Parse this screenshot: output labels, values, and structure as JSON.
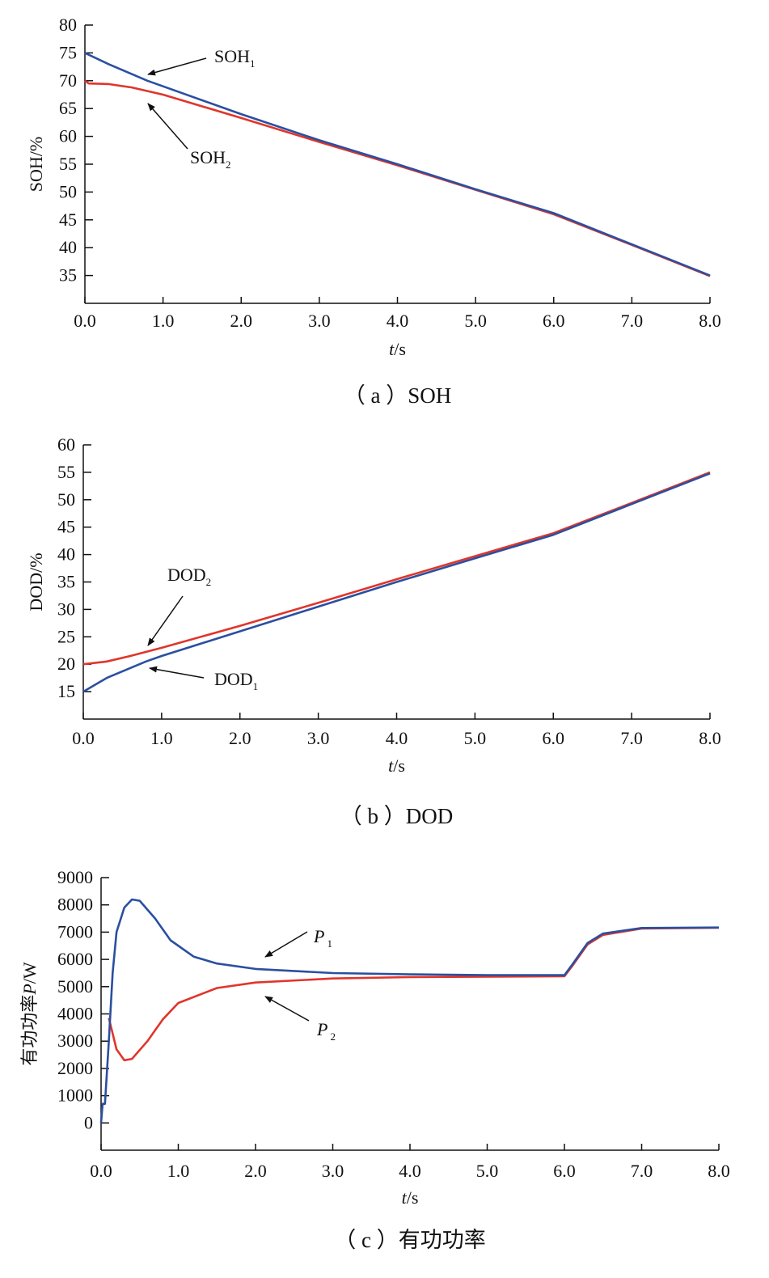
{
  "chart_data": [
    {
      "type": "line",
      "caption": "（ a ）SOH",
      "xlabel": {
        "italic": "t",
        "rest": "/s"
      },
      "ylabel": "SOH/%",
      "xlim": [
        0,
        8
      ],
      "ylim": [
        30,
        80
      ],
      "xticks": [
        "0.0",
        "1.0",
        "2.0",
        "3.0",
        "4.0",
        "5.0",
        "6.0",
        "7.0",
        "8.0"
      ],
      "yticks": [
        35,
        40,
        45,
        50,
        55,
        60,
        65,
        70,
        75,
        80
      ],
      "series": [
        {
          "name": "SOH2",
          "label": "SOH",
          "sub": "2",
          "color": "#e0352b",
          "x": [
            0,
            0.05,
            0.3,
            0.6,
            1,
            2,
            3,
            4,
            5,
            6,
            7,
            8
          ],
          "y": [
            70,
            69.5,
            69.4,
            68.8,
            67.5,
            63.3,
            59,
            54.8,
            50.4,
            46,
            40.5,
            34.9
          ]
        },
        {
          "name": "SOH1",
          "label": "SOH",
          "sub": "1",
          "color": "#2b4fa0",
          "x": [
            0,
            0.3,
            0.8,
            1,
            2,
            3,
            4,
            5,
            6,
            7,
            8
          ],
          "y": [
            75,
            73,
            70,
            69,
            64,
            59.3,
            55,
            50.5,
            46.2,
            40.6,
            35
          ]
        }
      ]
    },
    {
      "type": "line",
      "caption": "（ b ）DOD",
      "xlabel": {
        "italic": "t",
        "rest": "/s"
      },
      "ylabel": "DOD/%",
      "xlim": [
        0,
        8
      ],
      "ylim": [
        10,
        60
      ],
      "xticks": [
        "0.0",
        "1.0",
        "2.0",
        "3.0",
        "4.0",
        "5.0",
        "6.0",
        "7.0",
        "8.0"
      ],
      "yticks": [
        15,
        20,
        25,
        30,
        35,
        40,
        45,
        50,
        55,
        60
      ],
      "series": [
        {
          "name": "DOD2",
          "label": "DOD",
          "sub": "2",
          "color": "#e0352b",
          "x": [
            0,
            0.3,
            0.6,
            1,
            2,
            3,
            4,
            5,
            6,
            7,
            8
          ],
          "y": [
            20,
            20.5,
            21.5,
            23,
            27,
            31.2,
            35.5,
            39.7,
            43.9,
            49.4,
            55
          ]
        },
        {
          "name": "DOD1",
          "label": "DOD",
          "sub": "1",
          "color": "#2b4fa0",
          "x": [
            0,
            0.3,
            0.8,
            1,
            2,
            3,
            4,
            5,
            6,
            7,
            8
          ],
          "y": [
            15,
            17.5,
            20.5,
            21.5,
            26,
            30.5,
            35,
            39.3,
            43.6,
            49.2,
            54.8
          ]
        }
      ]
    },
    {
      "type": "line",
      "caption": "（ c ）有功功率",
      "xlabel": {
        "italic": "t",
        "rest": "/s"
      },
      "ylabel": "有功功率P/W",
      "xlim": [
        0,
        8
      ],
      "ylim": [
        -1000,
        9000
      ],
      "xticks": [
        "0.0",
        "1.0",
        "2.0",
        "3.0",
        "4.0",
        "5.0",
        "6.0",
        "7.0",
        "8.0"
      ],
      "yticks": [
        0,
        1000,
        2000,
        3000,
        4000,
        5000,
        6000,
        7000,
        8000,
        9000
      ],
      "series": [
        {
          "name": "P2",
          "label": "P",
          "sub": "2",
          "color": "#e0352b",
          "x": [
            0.1,
            0.2,
            0.3,
            0.4,
            0.6,
            0.8,
            1,
            1.5,
            2,
            3,
            4,
            6,
            6.1,
            6.3,
            6.5,
            7,
            8
          ],
          "y": [
            3850,
            2700,
            2300,
            2350,
            3000,
            3800,
            4400,
            4950,
            5150,
            5300,
            5350,
            5380,
            5750,
            6550,
            6900,
            7130,
            7160
          ]
        },
        {
          "name": "P1",
          "label": "P",
          "sub": "1",
          "color": "#2b4fa0",
          "x": [
            0,
            0.02,
            0.05,
            0.1,
            0.15,
            0.2,
            0.3,
            0.4,
            0.5,
            0.7,
            0.9,
            1.2,
            1.5,
            2,
            3,
            4,
            5,
            6,
            6.1,
            6.3,
            6.5,
            7,
            8
          ],
          "y": [
            0,
            700,
            700,
            3000,
            5500,
            7000,
            7900,
            8200,
            8150,
            7500,
            6700,
            6100,
            5850,
            5650,
            5500,
            5450,
            5420,
            5420,
            5800,
            6600,
            6950,
            7150,
            7170
          ]
        }
      ]
    }
  ]
}
